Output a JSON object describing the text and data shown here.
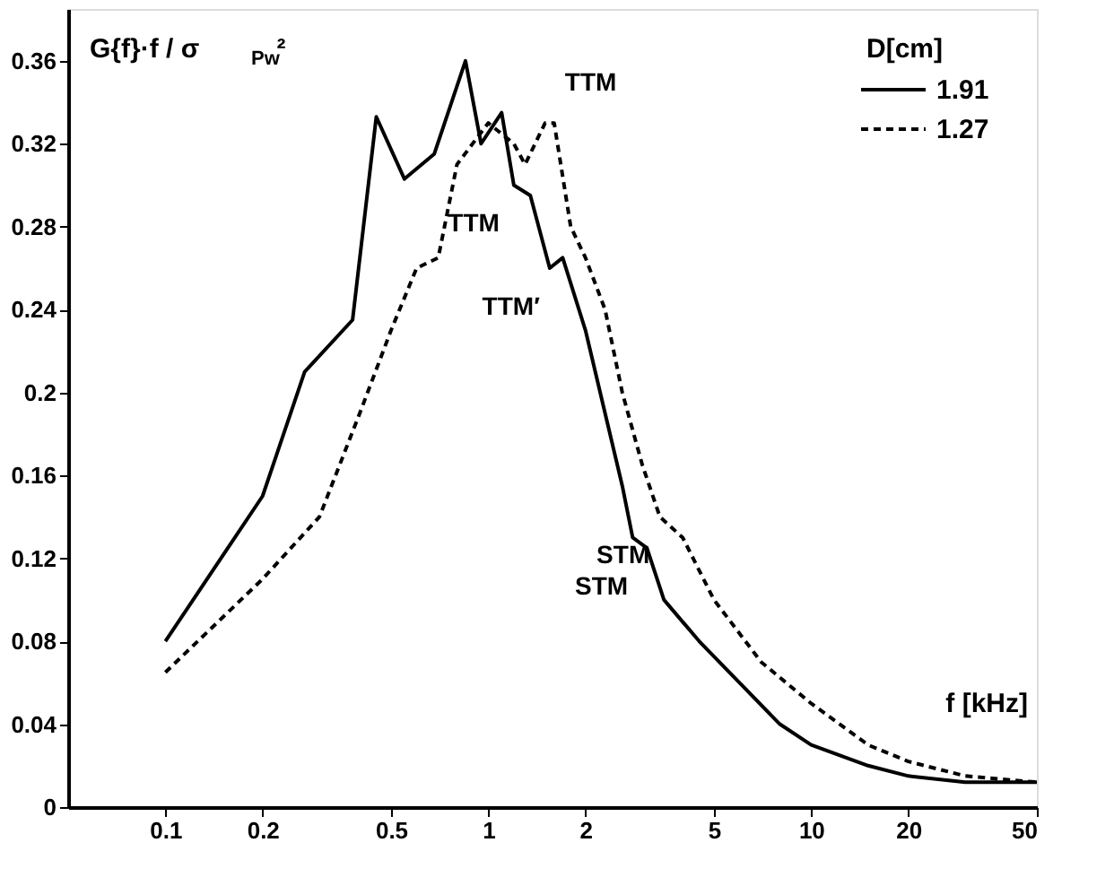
{
  "chart_data": {
    "type": "line",
    "xlabel": "f [kHz]",
    "ylabel": "G{f}·f / σ$_{Pw}$²",
    "legend_title": "D[cm]",
    "log": "x",
    "xlim": [
      0.05,
      50
    ],
    "xticks": [
      0.1,
      0.2,
      0.5,
      1,
      2,
      5,
      10,
      20,
      50
    ],
    "ylim": [
      0,
      0.385
    ],
    "yticks": [
      0,
      0.04,
      0.08,
      0.12,
      0.16,
      0.2,
      0.24,
      0.28,
      0.32,
      0.36
    ],
    "grid": false,
    "legend": "top right",
    "series": [
      {
        "name": "1.91",
        "color": "#000000",
        "line_style": "solid",
        "x": [
          0.1,
          0.2,
          0.27,
          0.38,
          0.45,
          0.55,
          0.68,
          0.85,
          0.95,
          1.1,
          1.2,
          1.35,
          1.55,
          1.7,
          2.0,
          2.3,
          2.6,
          2.8,
          3.1,
          3.5,
          4.5,
          6,
          8,
          10,
          15,
          20,
          30,
          50
        ],
        "values": [
          0.08,
          0.15,
          0.21,
          0.235,
          0.333,
          0.303,
          0.315,
          0.36,
          0.32,
          0.335,
          0.3,
          0.295,
          0.26,
          0.265,
          0.23,
          0.19,
          0.155,
          0.13,
          0.125,
          0.1,
          0.08,
          0.06,
          0.04,
          0.03,
          0.02,
          0.015,
          0.012,
          0.012
        ]
      },
      {
        "name": "1.27",
        "color": "#000000",
        "line_style": "dashed",
        "x": [
          0.1,
          0.2,
          0.3,
          0.4,
          0.5,
          0.6,
          0.7,
          0.8,
          1.0,
          1.2,
          1.3,
          1.5,
          1.6,
          1.8,
          2.0,
          2.3,
          2.6,
          3.0,
          3.4,
          4.0,
          5,
          7,
          10,
          15,
          20,
          30,
          50
        ],
        "values": [
          0.065,
          0.11,
          0.14,
          0.19,
          0.23,
          0.26,
          0.265,
          0.31,
          0.33,
          0.32,
          0.31,
          0.33,
          0.33,
          0.28,
          0.265,
          0.24,
          0.2,
          0.165,
          0.14,
          0.13,
          0.1,
          0.07,
          0.05,
          0.03,
          0.022,
          0.015,
          0.012
        ]
      }
    ],
    "annotations": [
      {
        "text": "TTM",
        "x": 1.6,
        "y": 0.33
      },
      {
        "text": "TTM",
        "x": 1.2,
        "y": 0.3
      },
      {
        "text": "TTM′",
        "x": 1.6,
        "y": 0.26
      },
      {
        "text": "STM",
        "x": 3.5,
        "y": 0.14
      },
      {
        "text": "STM",
        "x": 3.0,
        "y": 0.125
      }
    ]
  }
}
